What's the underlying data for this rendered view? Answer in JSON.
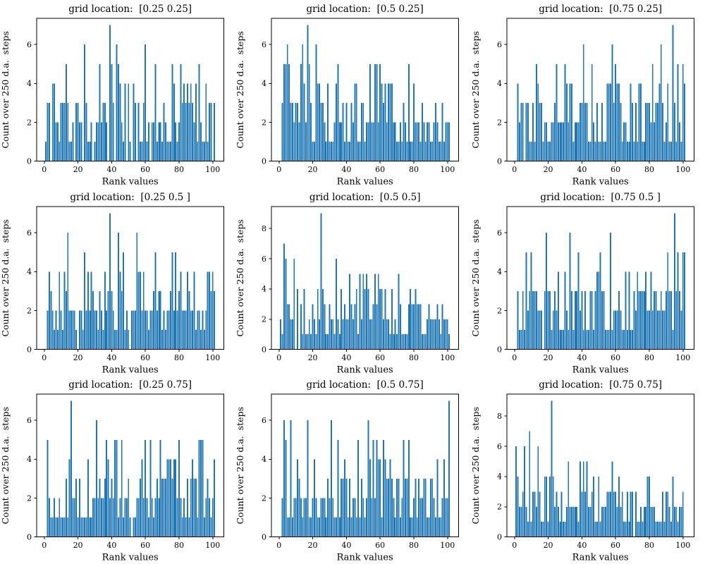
{
  "figure": {
    "background": "#ffffff",
    "bar_color": "#1f77b4",
    "axis_color": "#000000",
    "tick_label_color": "#000000",
    "xlabel": "Rank values",
    "ylabel": "Count over 250 d.a.  steps",
    "xticks": [
      0,
      20,
      40,
      60,
      80,
      100
    ],
    "xlim": [
      -4.5,
      106.5
    ],
    "x_start": 1,
    "grid": "off",
    "legend": "none"
  },
  "chart_data": [
    {
      "type": "bar",
      "row": 0,
      "col": 0,
      "title": "grid location:  [0.25 0.25]",
      "xlabel": "Rank values",
      "ylabel": "Count over 250 d.a.  steps",
      "yticks": [
        0,
        2,
        4,
        6
      ],
      "ylim": [
        0,
        7.35
      ],
      "values": [
        1,
        3,
        3,
        0,
        4,
        4,
        2,
        2,
        1,
        3,
        3,
        3,
        5,
        3,
        1,
        1,
        2,
        0,
        3,
        3,
        2,
        2,
        0,
        6,
        3,
        1,
        1,
        2,
        0,
        1,
        2,
        2,
        5,
        2,
        3,
        3,
        2,
        0,
        7,
        5,
        3,
        0,
        6,
        5,
        4,
        2,
        1,
        4,
        0,
        4,
        1,
        0,
        4,
        3,
        0,
        3,
        1,
        1,
        3,
        6,
        1,
        2,
        0,
        2,
        2,
        5,
        1,
        2,
        2,
        1,
        3,
        2,
        1,
        1,
        1,
        5,
        4,
        2,
        1,
        2,
        5,
        3,
        4,
        3,
        4,
        3,
        4,
        3,
        2,
        4,
        1,
        5,
        2,
        1,
        1,
        4,
        1,
        3,
        3,
        0,
        3
      ]
    },
    {
      "type": "bar",
      "row": 0,
      "col": 1,
      "title": "grid location:  [0.5 0.25]",
      "xlabel": "Rank values",
      "ylabel": "Count over 250 d.a.  steps",
      "yticks": [
        0,
        2,
        4,
        6
      ],
      "ylim": [
        0,
        7.35
      ],
      "values": [
        0,
        3,
        5,
        5,
        6,
        5,
        3,
        3,
        2,
        3,
        3,
        2,
        5,
        6,
        4,
        2,
        7,
        5,
        3,
        1,
        1,
        6,
        4,
        4,
        3,
        3,
        2,
        1,
        4,
        1,
        1,
        1,
        2,
        4,
        5,
        2,
        2,
        3,
        1,
        3,
        1,
        1,
        3,
        2,
        4,
        4,
        1,
        1,
        3,
        3,
        1,
        2,
        2,
        5,
        2,
        2,
        5,
        5,
        2,
        5,
        4,
        3,
        4,
        2,
        4,
        4,
        4,
        2,
        2,
        1,
        1,
        2,
        1,
        3,
        2,
        1,
        5,
        1,
        1,
        4,
        2,
        2,
        2,
        1,
        3,
        2,
        1,
        2,
        2,
        1,
        1,
        2,
        3,
        2,
        1,
        1,
        3,
        1,
        2,
        2,
        2
      ]
    },
    {
      "type": "bar",
      "row": 0,
      "col": 2,
      "title": "grid location:  [0.75 0.25]",
      "xlabel": "Rank values",
      "ylabel": "Count over 250 d.a.  steps",
      "yticks": [
        0,
        2,
        4,
        6
      ],
      "ylim": [
        0,
        7.35
      ],
      "values": [
        0,
        4,
        2,
        3,
        3,
        0,
        3,
        3,
        1,
        1,
        3,
        1,
        5,
        4,
        3,
        3,
        1,
        2,
        2,
        1,
        1,
        2,
        2,
        3,
        5,
        2,
        2,
        2,
        2,
        5,
        4,
        2,
        4,
        4,
        1,
        2,
        2,
        2,
        3,
        3,
        6,
        3,
        3,
        1,
        1,
        5,
        2,
        1,
        3,
        1,
        1,
        3,
        1,
        1,
        4,
        4,
        4,
        6,
        3,
        5,
        4,
        4,
        3,
        1,
        2,
        2,
        1,
        1,
        4,
        3,
        1,
        3,
        1,
        4,
        4,
        1,
        1,
        3,
        3,
        3,
        2,
        5,
        2,
        3,
        3,
        4,
        6,
        3,
        1,
        2,
        4,
        1,
        1,
        7,
        3,
        1,
        5,
        2,
        1,
        5,
        4
      ]
    },
    {
      "type": "bar",
      "row": 1,
      "col": 0,
      "title": "grid location:  [0.25 0.5 ]",
      "xlabel": "Rank values",
      "ylabel": "Count over 250 d.a.  steps",
      "yticks": [
        0,
        2,
        4,
        6
      ],
      "ylim": [
        0,
        7.35
      ],
      "values": [
        0,
        2,
        4,
        3,
        2,
        1,
        2,
        1,
        4,
        2,
        1,
        4,
        3,
        6,
        2,
        2,
        2,
        2,
        1,
        0,
        2,
        2,
        1,
        5,
        2,
        4,
        2,
        4,
        3,
        2,
        2,
        1,
        3,
        2,
        1,
        4,
        2,
        3,
        7,
        3,
        2,
        1,
        1,
        6,
        4,
        3,
        5,
        1,
        2,
        1,
        0,
        2,
        2,
        2,
        6,
        4,
        4,
        2,
        4,
        2,
        2,
        1,
        2,
        2,
        3,
        5,
        2,
        3,
        3,
        1,
        2,
        1,
        2,
        2,
        3,
        5,
        2,
        5,
        2,
        3,
        4,
        2,
        2,
        2,
        4,
        3,
        2,
        2,
        4,
        1,
        2,
        2,
        1,
        2,
        1,
        2,
        4,
        4,
        3,
        4,
        3
      ]
    },
    {
      "type": "bar",
      "row": 1,
      "col": 1,
      "title": "grid location:  [0.5 0.5]",
      "xlabel": "Rank values",
      "ylabel": "Count over 250 d.a.  steps",
      "yticks": [
        0,
        2,
        4,
        6,
        8
      ],
      "ylim": [
        0,
        9.45
      ],
      "values": [
        2,
        1,
        7,
        6,
        3,
        3,
        2,
        2,
        6,
        0,
        4,
        0,
        3,
        1,
        4,
        1,
        1,
        2,
        1,
        3,
        2,
        1,
        4,
        2,
        9,
        4,
        3,
        1,
        1,
        3,
        2,
        2,
        1,
        6,
        2,
        1,
        4,
        2,
        3,
        2,
        2,
        5,
        3,
        2,
        3,
        4,
        1,
        5,
        2,
        5,
        4,
        5,
        4,
        2,
        2,
        3,
        5,
        3,
        5,
        4,
        4,
        2,
        4,
        2,
        2,
        1,
        4,
        1,
        2,
        1,
        5,
        3,
        1,
        1,
        1,
        1,
        3,
        4,
        3,
        3,
        4,
        3,
        3,
        3,
        1,
        1,
        1,
        2,
        3,
        2,
        2,
        2,
        2,
        3,
        2,
        1,
        3,
        2,
        2,
        2,
        1
      ]
    },
    {
      "type": "bar",
      "row": 1,
      "col": 2,
      "title": "grid location:  [0.75 0.5 ]",
      "xlabel": "Rank values",
      "ylabel": "Count over 250 d.a.  steps",
      "yticks": [
        0,
        2,
        4,
        6
      ],
      "ylim": [
        0,
        7.35
      ],
      "values": [
        0,
        3,
        1,
        1,
        3,
        1,
        5,
        2,
        3,
        5,
        3,
        3,
        3,
        2,
        2,
        2,
        0,
        3,
        6,
        3,
        3,
        1,
        2,
        3,
        2,
        4,
        1,
        1,
        1,
        4,
        2,
        1,
        6,
        3,
        1,
        3,
        3,
        5,
        2,
        3,
        1,
        3,
        1,
        1,
        3,
        3,
        1,
        3,
        4,
        4,
        5,
        3,
        3,
        1,
        1,
        1,
        6,
        1,
        2,
        2,
        2,
        3,
        2,
        1,
        1,
        4,
        1,
        4,
        1,
        1,
        3,
        2,
        4,
        3,
        3,
        3,
        3,
        4,
        2,
        2,
        4,
        2,
        3,
        3,
        2,
        2,
        3,
        2,
        2,
        3,
        5,
        3,
        3,
        1,
        7,
        3,
        5,
        3,
        2,
        5,
        5
      ]
    },
    {
      "type": "bar",
      "row": 2,
      "col": 0,
      "title": "grid location:  [0.25 0.75]",
      "xlabel": "Rank values",
      "ylabel": "Count over 250 d.a.  steps",
      "yticks": [
        0,
        2,
        4,
        6
      ],
      "ylim": [
        0,
        7.35
      ],
      "values": [
        0,
        5,
        2,
        1,
        1,
        2,
        1,
        1,
        2,
        1,
        1,
        1,
        3,
        1,
        4,
        7,
        2,
        2,
        3,
        1,
        3,
        1,
        1,
        1,
        1,
        4,
        1,
        1,
        2,
        2,
        6,
        2,
        3,
        2,
        2,
        3,
        5,
        4,
        2,
        3,
        2,
        5,
        5,
        1,
        2,
        5,
        1,
        2,
        2,
        3,
        1,
        0,
        1,
        1,
        2,
        2,
        3,
        4,
        2,
        5,
        2,
        1,
        5,
        2,
        1,
        2,
        3,
        2,
        5,
        3,
        3,
        3,
        4,
        4,
        4,
        3,
        4,
        4,
        2,
        5,
        2,
        1,
        2,
        1,
        3,
        1,
        3,
        4,
        3,
        3,
        1,
        5,
        5,
        5,
        1,
        2,
        3,
        2,
        1,
        2,
        4
      ]
    },
    {
      "type": "bar",
      "row": 2,
      "col": 1,
      "title": "grid location:  [0.5 0.75]",
      "xlabel": "Rank values",
      "ylabel": "Count over 250 d.a.  steps",
      "yticks": [
        0,
        2,
        4,
        6
      ],
      "ylim": [
        0,
        7.35
      ],
      "values": [
        0,
        2,
        6,
        5,
        1,
        1,
        6,
        1,
        2,
        2,
        4,
        3,
        2,
        1,
        2,
        2,
        6,
        1,
        1,
        2,
        4,
        2,
        1,
        1,
        2,
        2,
        2,
        1,
        3,
        2,
        6,
        2,
        1,
        1,
        5,
        1,
        3,
        3,
        4,
        3,
        1,
        3,
        1,
        2,
        2,
        1,
        5,
        1,
        3,
        2,
        1,
        2,
        6,
        4,
        2,
        5,
        2,
        5,
        4,
        4,
        1,
        5,
        4,
        3,
        3,
        4,
        3,
        2,
        1,
        3,
        3,
        1,
        2,
        5,
        3,
        3,
        5,
        1,
        1,
        2,
        3,
        1,
        3,
        2,
        2,
        3,
        3,
        1,
        1,
        3,
        3,
        2,
        1,
        4,
        1,
        1,
        2,
        4,
        2,
        2,
        7
      ]
    },
    {
      "type": "bar",
      "row": 2,
      "col": 2,
      "title": "grid location:  [0.75 0.75]",
      "xlabel": "Rank values",
      "ylabel": "Count over 250 d.a.  steps",
      "yticks": [
        0,
        2,
        4,
        6,
        8
      ],
      "ylim": [
        0,
        9.45
      ],
      "values": [
        6,
        4,
        2,
        2,
        3,
        6,
        2,
        1,
        7,
        1,
        3,
        3,
        2,
        6,
        3,
        1,
        1,
        4,
        4,
        1,
        4,
        9,
        4,
        2,
        3,
        2,
        1,
        3,
        1,
        1,
        2,
        5,
        2,
        2,
        2,
        2,
        2,
        1,
        5,
        3,
        5,
        3,
        5,
        2,
        2,
        3,
        4,
        1,
        1,
        4,
        1,
        2,
        2,
        2,
        3,
        3,
        3,
        5,
        3,
        3,
        2,
        4,
        2,
        3,
        1,
        1,
        3,
        1,
        3,
        3,
        0,
        3,
        1,
        1,
        2,
        1,
        2,
        2,
        4,
        4,
        2,
        2,
        2,
        1,
        1,
        1,
        1,
        3,
        1,
        3,
        3,
        2,
        1,
        4,
        2,
        2,
        1,
        2,
        2,
        3,
        0
      ]
    }
  ]
}
